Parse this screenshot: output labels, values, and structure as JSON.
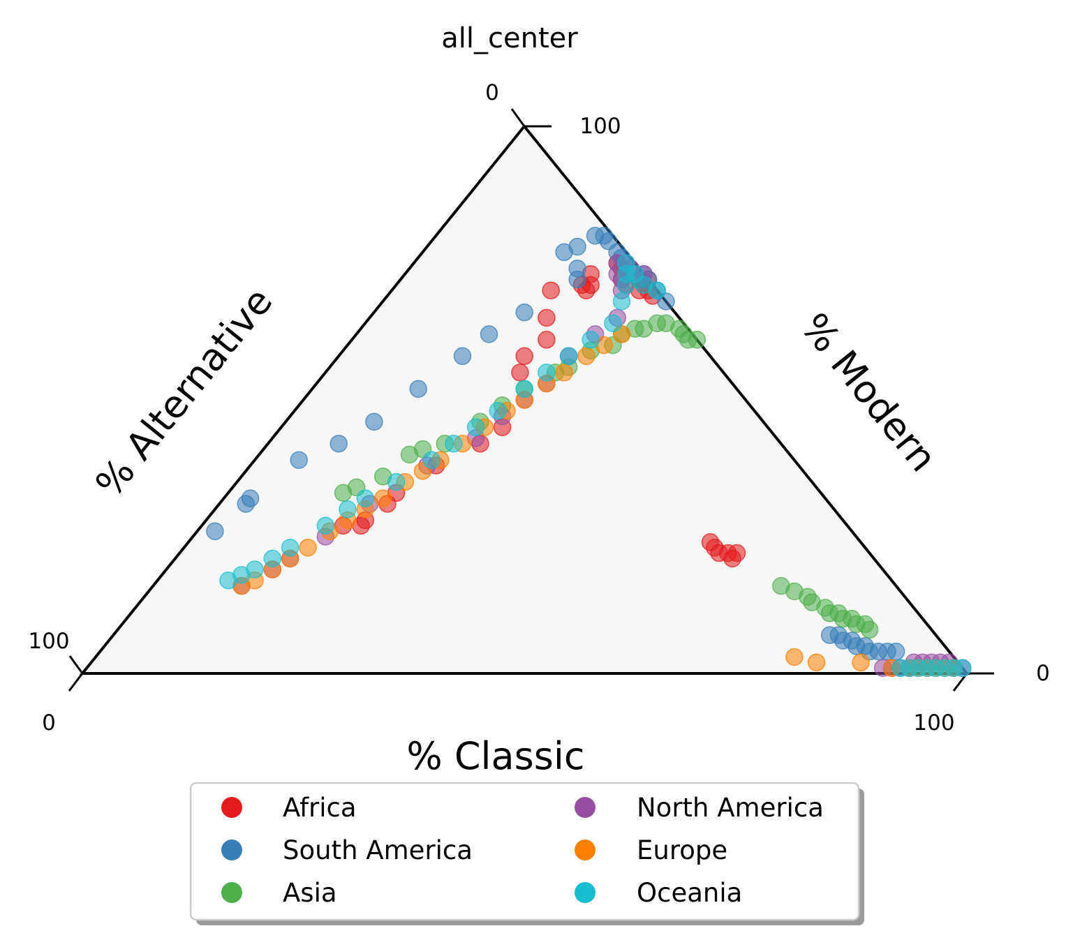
{
  "chart_data": {
    "type": "scatter",
    "subtype": "ternary",
    "title": "all_center",
    "axes": {
      "bottom": {
        "label": "% Classic",
        "ticks": [
          "0",
          "100"
        ]
      },
      "left": {
        "label": "% Alternative",
        "ticks": [
          "0",
          "100"
        ]
      },
      "right": {
        "label": "% Modern",
        "ticks": [
          "0",
          "100"
        ]
      }
    },
    "grid": false,
    "legend_position": "bottom-center",
    "units": "percent (Classic, Modern, Alternative)",
    "series": [
      {
        "name": "Africa",
        "color": "#e41a1c",
        "points": [
          [
            16,
            27,
            57
          ],
          [
            18,
            27,
            55
          ],
          [
            18,
            28,
            54
          ],
          [
            19,
            31,
            50
          ],
          [
            19,
            33,
            48
          ],
          [
            21,
            38,
            41
          ],
          [
            24,
            42,
            34
          ],
          [
            25,
            45,
            30
          ],
          [
            22,
            55,
            23
          ],
          [
            21,
            58,
            21
          ],
          [
            22,
            61,
            17
          ],
          [
            20,
            65,
            15
          ],
          [
            18,
            70,
            12
          ],
          [
            21,
            71,
            8
          ],
          [
            22,
            70,
            8
          ],
          [
            22,
            71,
            7
          ],
          [
            21,
            73,
            6
          ],
          [
            25,
            72,
            3
          ],
          [
            24,
            74,
            2
          ],
          [
            23,
            75,
            2
          ],
          [
            26,
            71,
            3
          ],
          [
            28,
            70,
            2
          ],
          [
            29,
            70,
            1
          ],
          [
            28,
            71,
            1
          ],
          [
            27,
            72,
            1
          ],
          [
            30,
            69,
            1
          ],
          [
            28,
            72,
            0
          ],
          [
            59,
            24,
            17
          ],
          [
            60,
            23,
            17
          ],
          [
            61,
            22,
            17
          ],
          [
            62,
            22,
            16
          ],
          [
            63,
            21,
            16
          ],
          [
            63,
            22,
            15
          ]
        ]
      },
      {
        "name": "South America",
        "color": "#377eb8",
        "points": [
          [
            2,
            26,
            72
          ],
          [
            3,
            31,
            66
          ],
          [
            3,
            32,
            65
          ],
          [
            5,
            39,
            56
          ],
          [
            8,
            42,
            50
          ],
          [
            10,
            46,
            44
          ],
          [
            12,
            52,
            36
          ],
          [
            14,
            58,
            28
          ],
          [
            15,
            62,
            23
          ],
          [
            17,
            66,
            17
          ],
          [
            20,
            72,
            8
          ],
          [
            19,
            74,
            7
          ],
          [
            16,
            77,
            7
          ],
          [
            17,
            78,
            5
          ],
          [
            18,
            80,
            2
          ],
          [
            19,
            80,
            1
          ],
          [
            20,
            79,
            1
          ],
          [
            22,
            77,
            1
          ],
          [
            23,
            76,
            1
          ],
          [
            25,
            74,
            1
          ],
          [
            27,
            72,
            1
          ],
          [
            27,
            73,
            0
          ],
          [
            28,
            72,
            0
          ],
          [
            30,
            70,
            0
          ],
          [
            32,
            68,
            0
          ],
          [
            81,
            7,
            12
          ],
          [
            82,
            7,
            11
          ],
          [
            83,
            6,
            11
          ],
          [
            84,
            6,
            10
          ],
          [
            85,
            5,
            10
          ],
          [
            86,
            5,
            9
          ],
          [
            87,
            4,
            9
          ],
          [
            88,
            4,
            8
          ],
          [
            89,
            4,
            7
          ],
          [
            90,
            4,
            6
          ]
        ]
      },
      {
        "name": "Asia",
        "color": "#4daf4a",
        "points": [
          [
            13,
            33,
            54
          ],
          [
            14,
            34,
            52
          ],
          [
            16,
            36,
            48
          ],
          [
            17,
            40,
            43
          ],
          [
            18,
            41,
            41
          ],
          [
            20,
            42,
            38
          ],
          [
            22,
            46,
            32
          ],
          [
            23,
            49,
            28
          ],
          [
            24,
            52,
            24
          ],
          [
            26,
            55,
            19
          ],
          [
            27,
            56,
            17
          ],
          [
            28,
            59,
            13
          ],
          [
            30,
            60,
            10
          ],
          [
            30,
            62,
            8
          ],
          [
            31,
            63,
            6
          ],
          [
            32,
            63,
            5
          ],
          [
            33,
            64,
            3
          ],
          [
            34,
            64,
            2
          ],
          [
            36,
            63,
            1
          ],
          [
            37,
            62,
            1
          ],
          [
            38,
            61,
            1
          ],
          [
            39,
            61,
            0
          ],
          [
            71,
            16,
            13
          ],
          [
            73,
            15,
            12
          ],
          [
            75,
            14,
            11
          ],
          [
            76,
            13,
            11
          ],
          [
            78,
            12,
            10
          ],
          [
            79,
            11,
            10
          ],
          [
            80,
            11,
            9
          ],
          [
            81,
            10,
            9
          ],
          [
            82,
            10,
            8
          ],
          [
            83,
            9,
            8
          ],
          [
            84,
            9,
            7
          ],
          [
            85,
            8,
            7
          ]
        ]
      },
      {
        "name": "North America",
        "color": "#984ea3",
        "points": [
          [
            10,
            16,
            74
          ],
          [
            12,
            19,
            69
          ],
          [
            13,
            21,
            66
          ],
          [
            15,
            25,
            60
          ],
          [
            17,
            31,
            52
          ],
          [
            20,
            38,
            42
          ],
          [
            23,
            43,
            34
          ],
          [
            24,
            47,
            29
          ],
          [
            25,
            50,
            25
          ],
          [
            26,
            53,
            21
          ],
          [
            26,
            58,
            16
          ],
          [
            27,
            62,
            11
          ],
          [
            28,
            65,
            7
          ],
          [
            26,
            70,
            4
          ],
          [
            25,
            72,
            3
          ],
          [
            24,
            73,
            3
          ],
          [
            23,
            75,
            2
          ],
          [
            24,
            75,
            1
          ],
          [
            25,
            74,
            1
          ],
          [
            27,
            73,
            0
          ],
          [
            90,
            1,
            9
          ],
          [
            91,
            1,
            8
          ],
          [
            92,
            1,
            7
          ],
          [
            93,
            1,
            6
          ],
          [
            93,
            2,
            5
          ],
          [
            94,
            2,
            4
          ],
          [
            95,
            2,
            3
          ],
          [
            96,
            2,
            2
          ],
          [
            97,
            2,
            1
          ],
          [
            98,
            1,
            1
          ],
          [
            99,
            1,
            0
          ]
        ]
      },
      {
        "name": "Europe",
        "color": "#ff7f00",
        "points": [
          [
            10,
            16,
            74
          ],
          [
            11,
            17,
            72
          ],
          [
            12,
            19,
            69
          ],
          [
            13,
            21,
            66
          ],
          [
            14,
            23,
            63
          ],
          [
            15,
            26,
            59
          ],
          [
            16,
            28,
            56
          ],
          [
            17,
            30,
            53
          ],
          [
            18,
            32,
            50
          ],
          [
            19,
            35,
            46
          ],
          [
            20,
            37,
            43
          ],
          [
            21,
            39,
            40
          ],
          [
            22,
            42,
            36
          ],
          [
            23,
            45,
            32
          ],
          [
            24,
            48,
            28
          ],
          [
            25,
            50,
            25
          ],
          [
            26,
            53,
            21
          ],
          [
            27,
            55,
            18
          ],
          [
            28,
            58,
            14
          ],
          [
            29,
            60,
            11
          ],
          [
            30,
            62,
            8
          ],
          [
            79,
            3,
            18
          ],
          [
            82,
            2,
            16
          ],
          [
            87,
            2,
            11
          ],
          [
            91,
            1,
            8
          ],
          [
            93,
            1,
            6
          ],
          [
            94,
            1,
            5
          ],
          [
            95,
            1,
            4
          ],
          [
            96,
            1,
            3
          ],
          [
            97,
            1,
            2
          ],
          [
            98,
            1,
            1
          ]
        ]
      },
      {
        "name": "Oceania",
        "color": "#17becf",
        "points": [
          [
            8,
            17,
            75
          ],
          [
            9,
            18,
            73
          ],
          [
            10,
            19,
            71
          ],
          [
            11,
            21,
            68
          ],
          [
            12,
            23,
            65
          ],
          [
            14,
            27,
            59
          ],
          [
            15,
            30,
            55
          ],
          [
            16,
            32,
            52
          ],
          [
            18,
            35,
            47
          ],
          [
            20,
            39,
            41
          ],
          [
            21,
            42,
            37
          ],
          [
            22,
            45,
            33
          ],
          [
            23,
            48,
            29
          ],
          [
            24,
            52,
            24
          ],
          [
            25,
            55,
            20
          ],
          [
            26,
            58,
            16
          ],
          [
            27,
            61,
            12
          ],
          [
            28,
            64,
            8
          ],
          [
            27,
            68,
            5
          ],
          [
            26,
            71,
            3
          ],
          [
            25,
            73,
            2
          ],
          [
            24,
            75,
            1
          ],
          [
            26,
            73,
            1
          ],
          [
            28,
            71,
            1
          ],
          [
            30,
            70,
            0
          ],
          [
            92,
            1,
            7
          ],
          [
            93,
            1,
            6
          ],
          [
            94,
            1,
            5
          ],
          [
            95,
            1,
            4
          ],
          [
            96,
            1,
            3
          ],
          [
            97,
            1,
            2
          ],
          [
            98,
            1,
            1
          ],
          [
            99,
            1,
            0
          ]
        ]
      }
    ]
  }
}
